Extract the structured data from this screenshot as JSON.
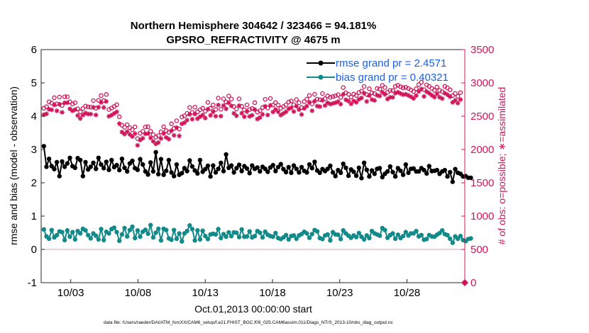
{
  "chart_data": {
    "type": "line",
    "title": "Northern Hemisphere 304642 / 323466 = 94.181%",
    "subtitle": "GPSRO_REFRACTIVITY @ 4675 m",
    "xlabel": "Oct.01,2013 00:00:00 start",
    "ylabel": "rmse and bias (model - observation)",
    "y2label": "# of obs: o=possible; ∗=assimilated",
    "xlim": [
      0.8,
      32.3
    ],
    "ylim": [
      -1,
      6
    ],
    "y2lim": [
      0,
      3500
    ],
    "x_ticks": [
      3,
      8,
      13,
      18,
      23,
      28
    ],
    "x_tick_labels": [
      "10/03",
      "10/08",
      "10/13",
      "10/18",
      "10/23",
      "10/28"
    ],
    "y_ticks": [
      -1,
      0,
      1,
      2,
      3,
      4,
      5,
      6
    ],
    "y_tick_labels": [
      "-1",
      "0",
      "1",
      "2",
      "3",
      "4",
      "5",
      "6"
    ],
    "y2_ticks": [
      0,
      500,
      1000,
      1500,
      2000,
      2500,
      3000,
      3500
    ],
    "y2_tick_labels": [
      "0",
      "500",
      "1000",
      "1500",
      "2000",
      "2500",
      "3000",
      "3500"
    ],
    "colors": {
      "rmse": "#000000",
      "bias": "#138a8a",
      "counts": "#d0155a",
      "zero_line": "#d9a0b0",
      "legend_text": "#1a5ee6"
    },
    "legend": {
      "location": "top-right",
      "entries": [
        "rmse grand pr = 2.4571",
        "bias grand pr = 0.40321"
      ]
    },
    "series": [
      {
        "name": "rmse",
        "axis": "left",
        "values": [
          3.1,
          2.48,
          2.72,
          2.5,
          2.41,
          2.62,
          2.2,
          2.64,
          2.48,
          2.58,
          2.75,
          2.5,
          2.45,
          2.74,
          2.68,
          2.2,
          2.62,
          2.4,
          2.48,
          2.6,
          2.42,
          2.75,
          2.55,
          2.44,
          2.63,
          2.39,
          2.68,
          2.47,
          2.53,
          2.38,
          2.72,
          2.45,
          2.34,
          2.58,
          2.66,
          2.44,
          2.39,
          2.71,
          2.55,
          2.34,
          2.25,
          2.61,
          2.34,
          2.92,
          2.26,
          2.71,
          2.24,
          2.36,
          2.68,
          2.31,
          2.2,
          2.55,
          2.24,
          2.29,
          2.44,
          2.35,
          2.67,
          2.49,
          2.37,
          2.28,
          2.68,
          2.33,
          2.41,
          2.51,
          2.19,
          2.52,
          2.31,
          2.42,
          2.6,
          2.35,
          2.85,
          2.45,
          2.52,
          2.31,
          2.44,
          2.54,
          2.35,
          2.5,
          2.43,
          2.29,
          2.52,
          2.42,
          2.46,
          2.34,
          2.48,
          2.42,
          2.33,
          2.46,
          2.53,
          2.35,
          2.47,
          2.56,
          2.41,
          2.32,
          2.47,
          2.3,
          2.52,
          2.42,
          2.31,
          2.47,
          2.36,
          2.31,
          2.55,
          2.44,
          2.63,
          2.37,
          2.3,
          2.41,
          2.35,
          2.42,
          2.51,
          2.31,
          2.2,
          2.38,
          2.3,
          2.57,
          2.45,
          2.21,
          2.4,
          2.33,
          2.21,
          2.45,
          2.14,
          2.6,
          2.39,
          2.19,
          2.37,
          2.27,
          2.42,
          2.44,
          2.17,
          2.27,
          2.34,
          2.49,
          2.32,
          2.19,
          2.44,
          2.36,
          2.24,
          2.55,
          2.3,
          2.42,
          2.43,
          2.34,
          2.34,
          2.44,
          2.38,
          2.28,
          2.5,
          2.35,
          2.36,
          2.38,
          2.27,
          2.34,
          2.38,
          2.19,
          2.32,
          2.03,
          2.41,
          2.3,
          2.27,
          2.19,
          2.2,
          2.15,
          2.15
        ]
      },
      {
        "name": "bias",
        "axis": "left",
        "values": [
          0.6,
          0.39,
          0.32,
          0.58,
          0.36,
          0.43,
          0.54,
          0.52,
          0.28,
          0.57,
          0.38,
          0.52,
          0.3,
          0.55,
          0.48,
          0.62,
          0.57,
          0.43,
          0.33,
          0.48,
          0.41,
          0.3,
          0.61,
          0.28,
          0.53,
          0.48,
          0.61,
          0.65,
          0.52,
          0.26,
          0.45,
          0.64,
          0.39,
          0.58,
          0.68,
          0.34,
          0.57,
          0.38,
          0.53,
          0.59,
          0.47,
          0.73,
          0.36,
          0.5,
          0.62,
          0.27,
          0.62,
          0.58,
          0.33,
          0.29,
          0.58,
          0.32,
          0.48,
          0.24,
          0.48,
          0.55,
          0.72,
          0.61,
          0.27,
          0.57,
          0.3,
          0.56,
          0.4,
          0.31,
          0.45,
          0.47,
          0.45,
          0.61,
          0.34,
          0.46,
          0.38,
          0.51,
          0.4,
          0.51,
          0.5,
          0.37,
          0.6,
          0.38,
          0.39,
          0.54,
          0.36,
          0.4,
          0.55,
          0.5,
          0.36,
          0.53,
          0.44,
          0.4,
          0.38,
          0.49,
          0.34,
          0.31,
          0.36,
          0.43,
          0.3,
          0.4,
          0.42,
          0.32,
          0.42,
          0.46,
          0.53,
          0.48,
          0.35,
          0.46,
          0.58,
          0.54,
          0.34,
          0.31,
          0.42,
          0.45,
          0.27,
          0.52,
          0.45,
          0.44,
          0.31,
          0.57,
          0.48,
          0.41,
          0.35,
          0.42,
          0.37,
          0.49,
          0.38,
          0.3,
          0.42,
          0.34,
          0.55,
          0.48,
          0.45,
          0.41,
          0.64,
          0.58,
          0.35,
          0.43,
          0.48,
          0.32,
          0.44,
          0.34,
          0.4,
          0.52,
          0.42,
          0.48,
          0.48,
          0.55,
          0.39,
          0.43,
          0.29,
          0.31,
          0.43,
          0.39,
          0.38,
          0.44,
          0.49,
          0.57,
          0.46,
          0.43,
          0.32,
          0.2,
          0.39,
          0.32,
          0.4,
          0.28,
          0.25,
          0.31,
          0.33
        ]
      },
      {
        "name": "possible",
        "axis": "right",
        "marker": "o",
        "values": [
          2619,
          2643,
          2716,
          2697,
          2778,
          2685,
          2787,
          2661,
          2793,
          2793,
          2715,
          2684,
          2702,
          2611,
          2566,
          2616,
          2651,
          2639,
          2635,
          2734,
          2620,
          2738,
          2810,
          2735,
          2827,
          2601,
          2621,
          2647,
          2672,
          2491,
          2364,
          2334,
          2372,
          2328,
          2298,
          2339,
          2164,
          2244,
          2271,
          2338,
          2341,
          2276,
          2223,
          2187,
          2207,
          2265,
          2341,
          2283,
          2257,
          2385,
          2316,
          2431,
          2307,
          2488,
          2505,
          2543,
          2631,
          2559,
          2636,
          2566,
          2596,
          2619,
          2575,
          2707,
          2618,
          2669,
          2602,
          2771,
          2604,
          2761,
          2714,
          2803,
          2759,
          2646,
          2610,
          2761,
          2648,
          2596,
          2670,
          2601,
          2616,
          2703,
          2562,
          2583,
          2630,
          2753,
          2622,
          2766,
          2667,
          2704,
          2668,
          2619,
          2645,
          2670,
          2713,
          2729,
          2673,
          2750,
          2702,
          2630,
          2719,
          2755,
          2812,
          2685,
          2829,
          2755,
          2748,
          2840,
          2764,
          2805,
          2784,
          2795,
          2806,
          2822,
          2783,
          2930,
          2851,
          2830,
          2788,
          2832,
          2811,
          2855,
          2877,
          2947,
          2825,
          2913,
          2852,
          2839,
          2916,
          2906,
          2963,
          2930,
          2860,
          2887,
          2886,
          2948,
          2964,
          2943,
          2927,
          2933,
          2915,
          2894,
          2869,
          2913,
          2974,
          3010,
          2899,
          2971,
          2948,
          2918,
          2889,
          2937,
          2887,
          2867,
          2948,
          2926,
          2897,
          2810,
          2841,
          2799,
          2854
        ]
      },
      {
        "name": "assimilated",
        "axis": "right",
        "marker": "*",
        "values": [
          2522,
          2535,
          2604,
          2595,
          2670,
          2581,
          2679,
          2558,
          2701,
          2701,
          2611,
          2580,
          2598,
          2510,
          2465,
          2516,
          2548,
          2533,
          2532,
          2632,
          2518,
          2635,
          2706,
          2631,
          2721,
          2498,
          2516,
          2541,
          2566,
          2389,
          2262,
          2231,
          2268,
          2227,
          2195,
          2238,
          2062,
          2142,
          2168,
          2235,
          2238,
          2174,
          2122,
          2084,
          2104,
          2165,
          2240,
          2181,
          2155,
          2282,
          2212,
          2329,
          2204,
          2386,
          2402,
          2440,
          2527,
          2455,
          2532,
          2462,
          2492,
          2517,
          2472,
          2605,
          2513,
          2566,
          2500,
          2668,
          2501,
          2659,
          2611,
          2701,
          2655,
          2544,
          2506,
          2658,
          2545,
          2493,
          2568,
          2497,
          2514,
          2600,
          2459,
          2480,
          2528,
          2650,
          2518,
          2663,
          2564,
          2601,
          2566,
          2516,
          2541,
          2566,
          2611,
          2626,
          2569,
          2648,
          2598,
          2526,
          2616,
          2652,
          2709,
          2582,
          2726,
          2652,
          2644,
          2738,
          2660,
          2702,
          2681,
          2692,
          2702,
          2719,
          2680,
          2828,
          2747,
          2727,
          2685,
          2729,
          2708,
          2752,
          2774,
          2844,
          2721,
          2810,
          2749,
          2736,
          2813,
          2803,
          2860,
          2827,
          2757,
          2784,
          2783,
          2845,
          2861,
          2840,
          2823,
          2830,
          2812,
          2791,
          2766,
          2809,
          2871,
          2907,
          2796,
          2868,
          2845,
          2815,
          2786,
          2834,
          2784,
          2764,
          2845,
          2823,
          2793,
          2707,
          2738,
          2696,
          2750
        ]
      }
    ],
    "annotations": [
      "data file: /Users/raeder/DAI/ATM_forcXX/CAM6_setup/f.e21.FHIST_BGC.f09_025.CAM6assim.011/Diags_NTrS_2013-10/obs_diag_output.nc"
    ]
  }
}
